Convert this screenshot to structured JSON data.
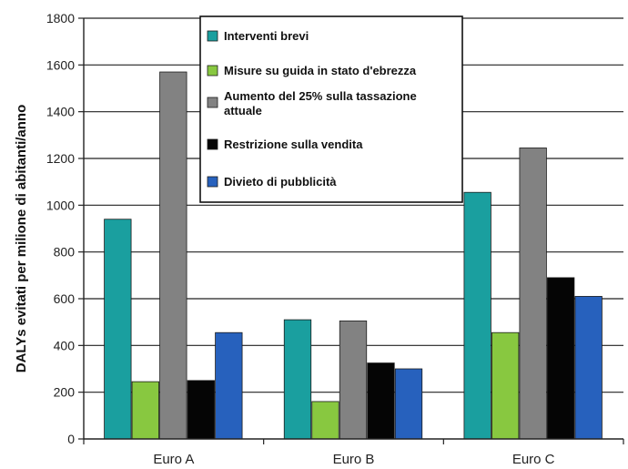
{
  "chart_data": {
    "type": "bar",
    "categories": [
      "Euro A",
      "Euro B",
      "Euro C"
    ],
    "series": [
      {
        "name": "Interventi brevi",
        "color": "#1a9f9f",
        "values": [
          940,
          510,
          1055
        ]
      },
      {
        "name": "Misure su guida in stato d'ebrezza",
        "color": "#88c840",
        "values": [
          245,
          160,
          455
        ]
      },
      {
        "name": "Aumento del 25% sulla tassazione attuale",
        "color": "#828282",
        "values": [
          1570,
          505,
          1245
        ]
      },
      {
        "name": "Restrizione sulla vendita",
        "color": "#050505",
        "values": [
          250,
          325,
          690
        ]
      },
      {
        "name": "Divieto di pubblicità",
        "color": "#2761bd",
        "values": [
          455,
          300,
          610
        ]
      }
    ],
    "title": "",
    "xlabel": "",
    "ylabel": "DALYs evitati per milione di abitanti/anno",
    "ylim": [
      0,
      1800
    ],
    "yticks": [
      0,
      200,
      400,
      600,
      800,
      1000,
      1200,
      1400,
      1600,
      1800
    ],
    "grid": true,
    "legend_position": "top-right"
  }
}
